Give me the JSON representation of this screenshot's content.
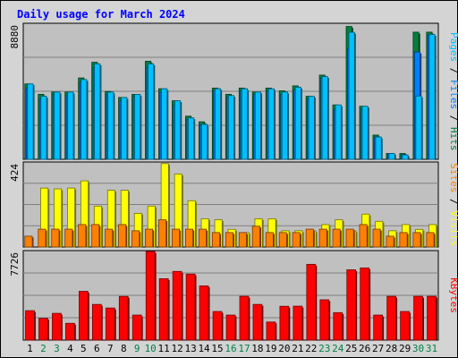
{
  "chart_data": {
    "type": "bar",
    "title": "Daily usage for March 2024",
    "categories": [
      "1",
      "2",
      "3",
      "4",
      "5",
      "6",
      "7",
      "8",
      "9",
      "10",
      "11",
      "12",
      "13",
      "14",
      "15",
      "16",
      "17",
      "18",
      "19",
      "20",
      "21",
      "22",
      "23",
      "24",
      "25",
      "26",
      "27",
      "28",
      "29",
      "30",
      "31"
    ],
    "weekend_days": [
      "2",
      "3",
      "9",
      "10",
      "16",
      "17",
      "23",
      "24",
      "30",
      "31"
    ],
    "colors": {
      "title": "#0000ff",
      "hits": "#008040",
      "files": "#0080ff",
      "pages": "#00c0ff",
      "visits": "#ffff00",
      "sites": "#ff8000",
      "kbytes": "#ff0000",
      "plot_bg": "#c0c0c0",
      "frame_bg": "#d4d4d4",
      "weekday_label": "#000000",
      "weekend_label": "#00804a"
    },
    "panels": [
      {
        "ymax_label": "8880",
        "ylim": [
          0,
          8880
        ],
        "side_label_parts": [
          {
            "text": "Pages",
            "color": "#00c0ff"
          },
          {
            "text": " / ",
            "color": "#000000"
          },
          {
            "text": "Files",
            "color": "#0080ff"
          },
          {
            "text": " / ",
            "color": "#000000"
          },
          {
            "text": "Hits",
            "color": "#008040"
          }
        ],
        "series": [
          {
            "name": "Hits",
            "values": [
              4922,
              4240,
              4389,
              4389,
              5312,
              6334,
              4432,
              4039,
              4240,
              6400,
              4608,
              3822,
              2816,
              2448,
              4650,
              4240,
              4650,
              4389,
              4650,
              4472,
              4794,
              4114,
              5496,
              3552,
              8670,
              3462,
              1582,
              380,
              380,
              8300,
              8300
            ]
          },
          {
            "name": "Files",
            "values": [
              4650,
              3930,
              4240,
              4160,
              5040,
              5990,
              4240,
              3822,
              4114,
              6010,
              4389,
              3552,
              2590,
              2245,
              4472,
              4039,
              4472,
              4240,
              4472,
              4240,
              4519,
              3930,
              5312,
              3260,
              7240,
              3260,
              1454,
              380,
              300,
              7000,
              8100
            ]
          },
          {
            "name": "Pages",
            "values": [
              4922,
              4114,
              4389,
              4389,
              5208,
              6232,
              4389,
              4039,
              4240,
              6232,
              4608,
              3822,
              2704,
              2280,
              4608,
              4162,
              4608,
              4389,
              4608,
              4390,
              4706,
              4114,
              5396,
              3552,
              8290,
              3462,
              1456,
              380,
              284,
              4130,
              8150
            ]
          }
        ]
      },
      {
        "ymax_label": "424",
        "ylim": [
          0,
          424
        ],
        "side_label_parts": [
          {
            "text": "Sites",
            "color": "#ff8000"
          },
          {
            "text": " / ",
            "color": "#000000"
          },
          {
            "text": "Visits",
            "color": "#ffff00"
          }
        ],
        "series": [
          {
            "name": "Visits",
            "values": [
              0,
              294,
              290,
              294,
              330,
              204,
              283,
              283,
              168,
              204,
              416,
              364,
              231,
              141,
              136,
              88,
              72,
              141,
              141,
              81,
              81,
              81,
              112,
              136,
              81,
              164,
              128,
              81,
              112,
              88,
              112
            ]
          },
          {
            "name": "Sites",
            "values": [
              54,
              89,
              89,
              89,
              112,
              112,
              89,
              112,
              81,
              89,
              136,
              89,
              89,
              89,
              72,
              72,
              72,
              104,
              72,
              72,
              72,
              89,
              89,
              89,
              89,
              112,
              89,
              54,
              72,
              72,
              72
            ]
          }
        ]
      },
      {
        "ymax_label": "7726",
        "ylim": [
          0,
          7726
        ],
        "side_label_parts": [
          {
            "text": "KBytes",
            "color": "#ff0000"
          }
        ],
        "series": [
          {
            "name": "KBytes",
            "values": [
              2540,
              1880,
              2310,
              1450,
              4210,
              3080,
              2770,
              3770,
              2160,
              7700,
              5300,
              5930,
              5700,
              4680,
              2470,
              2160,
              3780,
              3080,
              1560,
              2920,
              2930,
              6540,
              3480,
              2370,
              6070,
              6230,
              2160,
              3780,
              2470,
              3780,
              3780
            ]
          }
        ]
      }
    ],
    "grid": true
  }
}
